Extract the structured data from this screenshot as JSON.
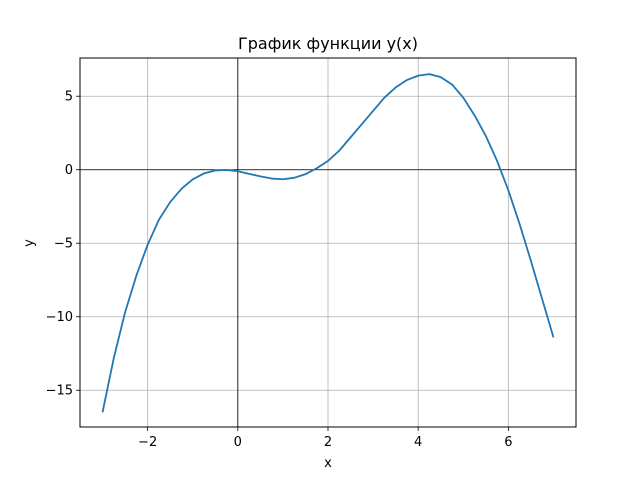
{
  "chart_data": {
    "type": "line",
    "title": "График функции y(x)",
    "xlabel": "x",
    "ylabel": "y",
    "xlim": [
      -3.5,
      7.5
    ],
    "ylim": [
      -17.5,
      7.6
    ],
    "grid": true,
    "zero_lines": true,
    "x_ticks": [
      -2,
      0,
      2,
      4,
      6
    ],
    "x_tick_labels": [
      "−2",
      "0",
      "2",
      "4",
      "6"
    ],
    "y_ticks": [
      5,
      0,
      -5,
      -10,
      -15
    ],
    "y_tick_labels": [
      "5",
      "0",
      "−5",
      "−10",
      "−15"
    ],
    "series": [
      {
        "color": "#1f77b4",
        "x": [
          -3,
          -2.75,
          -2.5,
          -2.25,
          -2,
          -1.75,
          -1.5,
          -1.25,
          -1,
          -0.75,
          -0.5,
          -0.25,
          0,
          0.25,
          0.5,
          0.75,
          1,
          1.25,
          1.5,
          1.75,
          2,
          2.25,
          2.5,
          2.75,
          3,
          3.25,
          3.5,
          3.75,
          4,
          4.25,
          4.5,
          4.75,
          5,
          5.25,
          5.5,
          5.75,
          6,
          6.25,
          6.5,
          6.75,
          7
        ],
        "y": [
          -16.5,
          -12.8,
          -9.7,
          -7.2,
          -5.1,
          -3.4,
          -2.2,
          -1.3,
          -0.65,
          -0.25,
          -0.05,
          -0.02,
          -0.1,
          -0.28,
          -0.45,
          -0.6,
          -0.65,
          -0.55,
          -0.3,
          0.1,
          0.6,
          1.3,
          2.2,
          3.1,
          4.0,
          4.9,
          5.6,
          6.1,
          6.4,
          6.5,
          6.3,
          5.8,
          4.9,
          3.7,
          2.3,
          0.6,
          -1.4,
          -3.7,
          -6.2,
          -8.8,
          -11.4
        ]
      }
    ]
  }
}
